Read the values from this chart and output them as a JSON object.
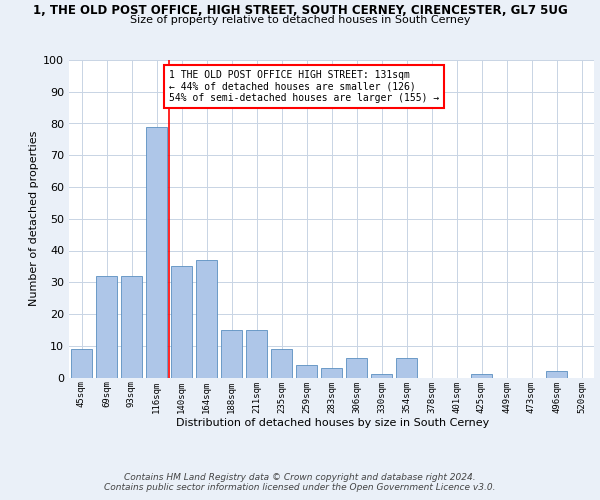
{
  "title1": "1, THE OLD POST OFFICE, HIGH STREET, SOUTH CERNEY, CIRENCESTER, GL7 5UG",
  "title2": "Size of property relative to detached houses in South Cerney",
  "xlabel": "Distribution of detached houses by size in South Cerney",
  "ylabel": "Number of detached properties",
  "categories": [
    "45sqm",
    "69sqm",
    "93sqm",
    "116sqm",
    "140sqm",
    "164sqm",
    "188sqm",
    "211sqm",
    "235sqm",
    "259sqm",
    "283sqm",
    "306sqm",
    "330sqm",
    "354sqm",
    "378sqm",
    "401sqm",
    "425sqm",
    "449sqm",
    "473sqm",
    "496sqm",
    "520sqm"
  ],
  "values": [
    9,
    32,
    32,
    79,
    35,
    37,
    15,
    15,
    9,
    4,
    3,
    6,
    1,
    6,
    0,
    0,
    1,
    0,
    0,
    2,
    0
  ],
  "bar_color": "#aec6e8",
  "bar_edge_color": "#5a8fc0",
  "redline_x": 3.5,
  "annotation_lines": [
    "1 THE OLD POST OFFICE HIGH STREET: 131sqm",
    "← 44% of detached houses are smaller (126)",
    "54% of semi-detached houses are larger (155) →"
  ],
  "footer": "Contains HM Land Registry data © Crown copyright and database right 2024.\nContains public sector information licensed under the Open Government Licence v3.0.",
  "ylim": [
    0,
    100
  ],
  "bg_color": "#eaf0f8",
  "plot_bg_color": "#ffffff",
  "grid_color": "#c8d4e4"
}
